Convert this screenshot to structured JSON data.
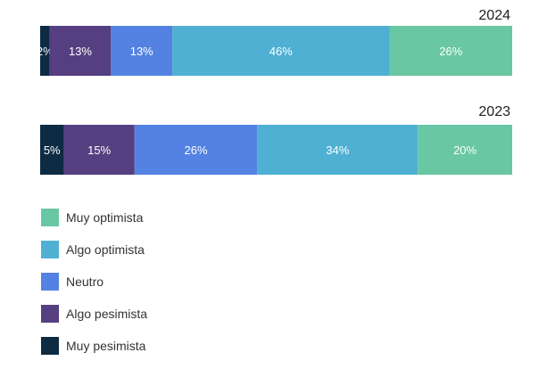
{
  "chart_data": {
    "type": "bar",
    "orientation": "horizontal-stacked-100",
    "title": "",
    "rows": [
      {
        "label": "2024",
        "values": [
          2,
          13,
          13,
          46,
          26
        ],
        "value_labels": [
          "2%",
          "13%",
          "13%",
          "46%",
          "26%"
        ]
      },
      {
        "label": "2023",
        "values": [
          5,
          15,
          26,
          34,
          20
        ],
        "value_labels": [
          "5%",
          "15%",
          "26%",
          "34%",
          "20%"
        ]
      }
    ],
    "series": [
      {
        "name": "Muy pesimista",
        "color": "#0d2c44"
      },
      {
        "name": "Algo pesimista",
        "color": "#553f80"
      },
      {
        "name": "Neutro",
        "color": "#5482e2"
      },
      {
        "name": "Algo optimista",
        "color": "#4fb0d4"
      },
      {
        "name": "Muy optimista",
        "color": "#69c7a3"
      }
    ],
    "legend_order": [
      "Muy optimista",
      "Algo optimista",
      "Neutro",
      "Algo pesimista",
      "Muy pesimista"
    ],
    "legend_position": "bottom-left",
    "xlim": [
      0,
      100
    ],
    "grid": false
  },
  "legend": {
    "items": [
      {
        "label": "Muy optimista",
        "color": "#69c7a3"
      },
      {
        "label": "Algo optimista",
        "color": "#4fb0d4"
      },
      {
        "label": "Neutro",
        "color": "#5482e2"
      },
      {
        "label": "Algo pesimista",
        "color": "#553f80"
      },
      {
        "label": "Muy pesimista",
        "color": "#0d2c44"
      }
    ]
  }
}
